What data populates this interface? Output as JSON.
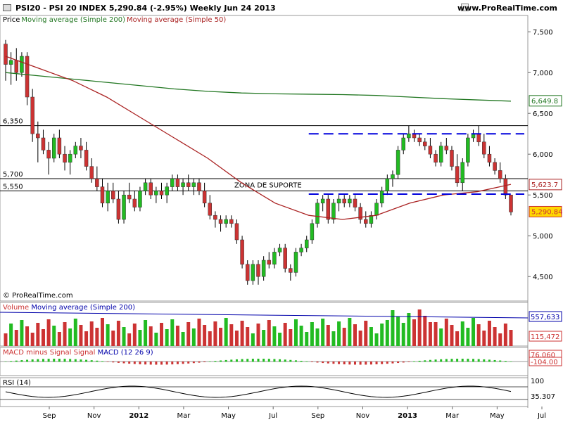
{
  "header": {
    "title": "PSI20 - PSI 20 INDEX    5,290.84 (-2.95%)    Weekly  Jun 24 2013",
    "site": "www.ProRealTime.com"
  },
  "legend": {
    "price": "Price",
    "ma200": "Moving average (Simple 200)",
    "ma50": "Moving average (Simple 50)",
    "copyright": "© ProRealTime.com"
  },
  "colors": {
    "up": "#22bb22",
    "down": "#cc3333",
    "ma200": "#227722",
    "ma50": "#aa2222",
    "dash": "#0000dd",
    "axis_bg": "#ffffff"
  },
  "x_axis": {
    "labels": [
      "Sep",
      "Nov",
      "2012",
      "Mar",
      "May",
      "Jul",
      "Sep",
      "Nov",
      "2013",
      "Mar",
      "May",
      "Jul"
    ]
  },
  "chart_data": [
    {
      "type": "candlestick",
      "title": "PSI20 - PSI 20 INDEX",
      "ylim": [
        4200,
        7700
      ],
      "yticks": [
        "7,500",
        "7,000",
        "6,500",
        "6,000",
        "5,500",
        "5,000",
        "4,500"
      ],
      "ytick_values": [
        7500,
        7000,
        6500,
        6000,
        5500,
        5000,
        4500
      ],
      "levels": [
        {
          "value": 6350,
          "label": "6,350"
        },
        {
          "value": 5700,
          "label": "5,700"
        },
        {
          "value": 5550,
          "label": "5,550"
        }
      ],
      "zone_label": "ZONA DE SUPORTE",
      "value_tags": [
        {
          "value": 6649.8,
          "label": "6,649.8",
          "color": "#227722"
        },
        {
          "value": 5623.7,
          "label": "5,623.7",
          "color": "#aa2222"
        },
        {
          "value": 5290.84,
          "label": "5,290.84",
          "color": "#cc3333",
          "fill": "#ffd700"
        }
      ],
      "candles": [
        [
          7350,
          7400,
          6900,
          7100
        ],
        [
          7100,
          7250,
          6850,
          7150
        ],
        [
          7150,
          7300,
          6900,
          7000
        ],
        [
          7000,
          7250,
          6950,
          7200
        ],
        [
          7200,
          7250,
          6600,
          6700
        ],
        [
          6700,
          6800,
          6150,
          6250
        ],
        [
          6250,
          6400,
          5900,
          6200
        ],
        [
          6200,
          6300,
          6000,
          6050
        ],
        [
          6050,
          6150,
          5750,
          5950
        ],
        [
          5950,
          6250,
          5900,
          6200
        ],
        [
          6200,
          6300,
          5950,
          6000
        ],
        [
          6000,
          6100,
          5800,
          5900
        ],
        [
          5900,
          6050,
          5750,
          6000
        ],
        [
          6000,
          6150,
          5950,
          6100
        ],
        [
          6100,
          6200,
          5950,
          6050
        ],
        [
          6050,
          6150,
          5800,
          5850
        ],
        [
          5850,
          5950,
          5650,
          5700
        ],
        [
          5700,
          5850,
          5550,
          5600
        ],
        [
          5600,
          5700,
          5350,
          5400
        ],
        [
          5400,
          5650,
          5300,
          5550
        ],
        [
          5550,
          5650,
          5400,
          5450
        ],
        [
          5450,
          5550,
          5150,
          5200
        ],
        [
          5200,
          5550,
          5150,
          5500
        ],
        [
          5500,
          5650,
          5400,
          5450
        ],
        [
          5450,
          5550,
          5300,
          5350
        ],
        [
          5350,
          5600,
          5300,
          5550
        ],
        [
          5550,
          5700,
          5500,
          5650
        ],
        [
          5650,
          5700,
          5450,
          5500
        ],
        [
          5500,
          5600,
          5400,
          5550
        ],
        [
          5550,
          5650,
          5450,
          5500
        ],
        [
          5500,
          5650,
          5400,
          5600
        ],
        [
          5600,
          5750,
          5550,
          5700
        ],
        [
          5700,
          5750,
          5550,
          5600
        ],
        [
          5600,
          5700,
          5500,
          5650
        ],
        [
          5650,
          5750,
          5550,
          5600
        ],
        [
          5600,
          5700,
          5500,
          5650
        ],
        [
          5650,
          5700,
          5500,
          5550
        ],
        [
          5550,
          5650,
          5350,
          5400
        ],
        [
          5400,
          5500,
          5200,
          5250
        ],
        [
          5250,
          5300,
          5100,
          5200
        ],
        [
          5200,
          5250,
          5050,
          5150
        ],
        [
          5150,
          5250,
          5100,
          5200
        ],
        [
          5200,
          5250,
          5100,
          5150
        ],
        [
          5150,
          5200,
          4900,
          4950
        ],
        [
          4950,
          5000,
          4600,
          4650
        ],
        [
          4650,
          4700,
          4400,
          4450
        ],
        [
          4450,
          4700,
          4400,
          4650
        ],
        [
          4650,
          4700,
          4400,
          4500
        ],
        [
          4500,
          4750,
          4450,
          4700
        ],
        [
          4700,
          4800,
          4600,
          4650
        ],
        [
          4650,
          4850,
          4600,
          4800
        ],
        [
          4800,
          4900,
          4750,
          4850
        ],
        [
          4850,
          4900,
          4550,
          4600
        ],
        [
          4600,
          4650,
          4450,
          4550
        ],
        [
          4550,
          4850,
          4500,
          4800
        ],
        [
          4800,
          4900,
          4750,
          4850
        ],
        [
          4850,
          5000,
          4800,
          4950
        ],
        [
          4950,
          5200,
          4900,
          5150
        ],
        [
          5150,
          5450,
          5100,
          5400
        ],
        [
          5400,
          5500,
          5300,
          5450
        ],
        [
          5450,
          5500,
          5150,
          5200
        ],
        [
          5200,
          5450,
          5150,
          5400
        ],
        [
          5400,
          5500,
          5300,
          5450
        ],
        [
          5450,
          5500,
          5350,
          5400
        ],
        [
          5400,
          5500,
          5350,
          5450
        ],
        [
          5450,
          5500,
          5300,
          5350
        ],
        [
          5350,
          5400,
          5150,
          5200
        ],
        [
          5200,
          5300,
          5100,
          5150
        ],
        [
          5150,
          5300,
          5100,
          5250
        ],
        [
          5250,
          5450,
          5200,
          5400
        ],
        [
          5400,
          5600,
          5350,
          5550
        ],
        [
          5550,
          5750,
          5500,
          5700
        ],
        [
          5700,
          5800,
          5600,
          5750
        ],
        [
          5750,
          6100,
          5700,
          6050
        ],
        [
          6050,
          6250,
          6000,
          6200
        ],
        [
          6200,
          6350,
          6150,
          6250
        ],
        [
          6250,
          6300,
          6150,
          6200
        ],
        [
          6200,
          6250,
          6100,
          6150
        ],
        [
          6150,
          6200,
          6050,
          6100
        ],
        [
          6100,
          6200,
          5950,
          6000
        ],
        [
          6000,
          6050,
          5850,
          5900
        ],
        [
          5900,
          6150,
          5850,
          6100
        ],
        [
          6100,
          6200,
          6000,
          6050
        ],
        [
          6050,
          6100,
          5800,
          5850
        ],
        [
          5850,
          6000,
          5600,
          5650
        ],
        [
          5650,
          5950,
          5550,
          5900
        ],
        [
          5900,
          6250,
          5850,
          6200
        ],
        [
          6200,
          6300,
          6150,
          6250
        ],
        [
          6250,
          6350,
          6100,
          6150
        ],
        [
          6150,
          6250,
          5950,
          6000
        ],
        [
          6000,
          6100,
          5850,
          5900
        ],
        [
          5900,
          5950,
          5750,
          5800
        ],
        [
          5800,
          5900,
          5650,
          5700
        ],
        [
          5700,
          5750,
          5450,
          5500
        ],
        [
          5500,
          5500,
          5250,
          5291
        ]
      ],
      "ma200": [
        7000,
        6960,
        6920,
        6880,
        6840,
        6800,
        6770,
        6750,
        6740,
        6735,
        6730,
        6720,
        6700,
        6680,
        6665,
        6650
      ],
      "ma50": [
        7200,
        7050,
        6900,
        6700,
        6450,
        6200,
        5950,
        5650,
        5400,
        5250,
        5200,
        5250,
        5400,
        5500,
        5540,
        5630
      ],
      "dashed_levels": [
        {
          "value": 6250,
          "from": 0.78,
          "to": 1.0
        },
        {
          "value": 5510,
          "from": 0.78,
          "to": 1.0
        }
      ]
    },
    {
      "type": "bar",
      "title": "Volume",
      "legend": "Moving average (Simple 200)",
      "tags": [
        {
          "label": "557,633",
          "color": "#0000aa"
        },
        {
          "label": "115,472",
          "color": "#cc3333"
        }
      ]
    },
    {
      "type": "bar",
      "title": "MACD minus Signal",
      "legend_signal": "Signal",
      "legend_macd": "MACD (12 26 9)",
      "tags": [
        {
          "label": "76.060",
          "color": "#cc3333"
        },
        {
          "label": "-104.00",
          "color": "#cc3333"
        }
      ]
    },
    {
      "type": "line",
      "title": "RSI (14)",
      "tags": [
        {
          "label": "100",
          "color": "#000000"
        },
        {
          "label": "35.307",
          "color": "#000000"
        }
      ]
    }
  ]
}
